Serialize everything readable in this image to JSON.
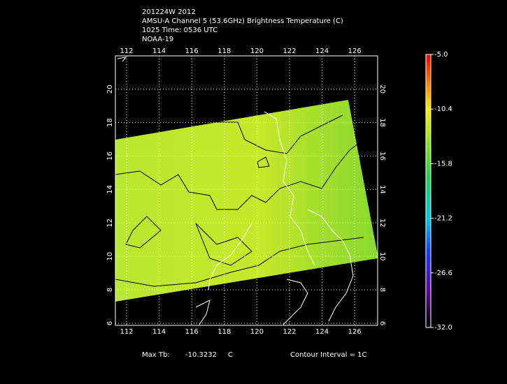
{
  "header": {
    "lines": [
      "201224W 2012",
      "AMSU-A Channel 5 (53.6GHz) Brightness Temperature (C)",
      "1025 Time: 0536 UTC",
      "NOAA-19"
    ]
  },
  "map": {
    "lon_labels": [
      "112",
      "114",
      "116",
      "118",
      "120",
      "122",
      "124",
      "126"
    ],
    "lat_labels": [
      "6",
      "8",
      "10",
      "12",
      "14",
      "16",
      "18",
      "20"
    ]
  },
  "colorbar": {
    "labels": [
      "-5.0",
      "-10.4",
      "-15.8",
      "-21.2",
      "-26.6",
      "-32.0"
    ]
  },
  "footer": {
    "max_label": "Max Tb:",
    "max_value": "-10.3232",
    "unit": "C",
    "contour": "Contour Interval = 1C"
  }
}
